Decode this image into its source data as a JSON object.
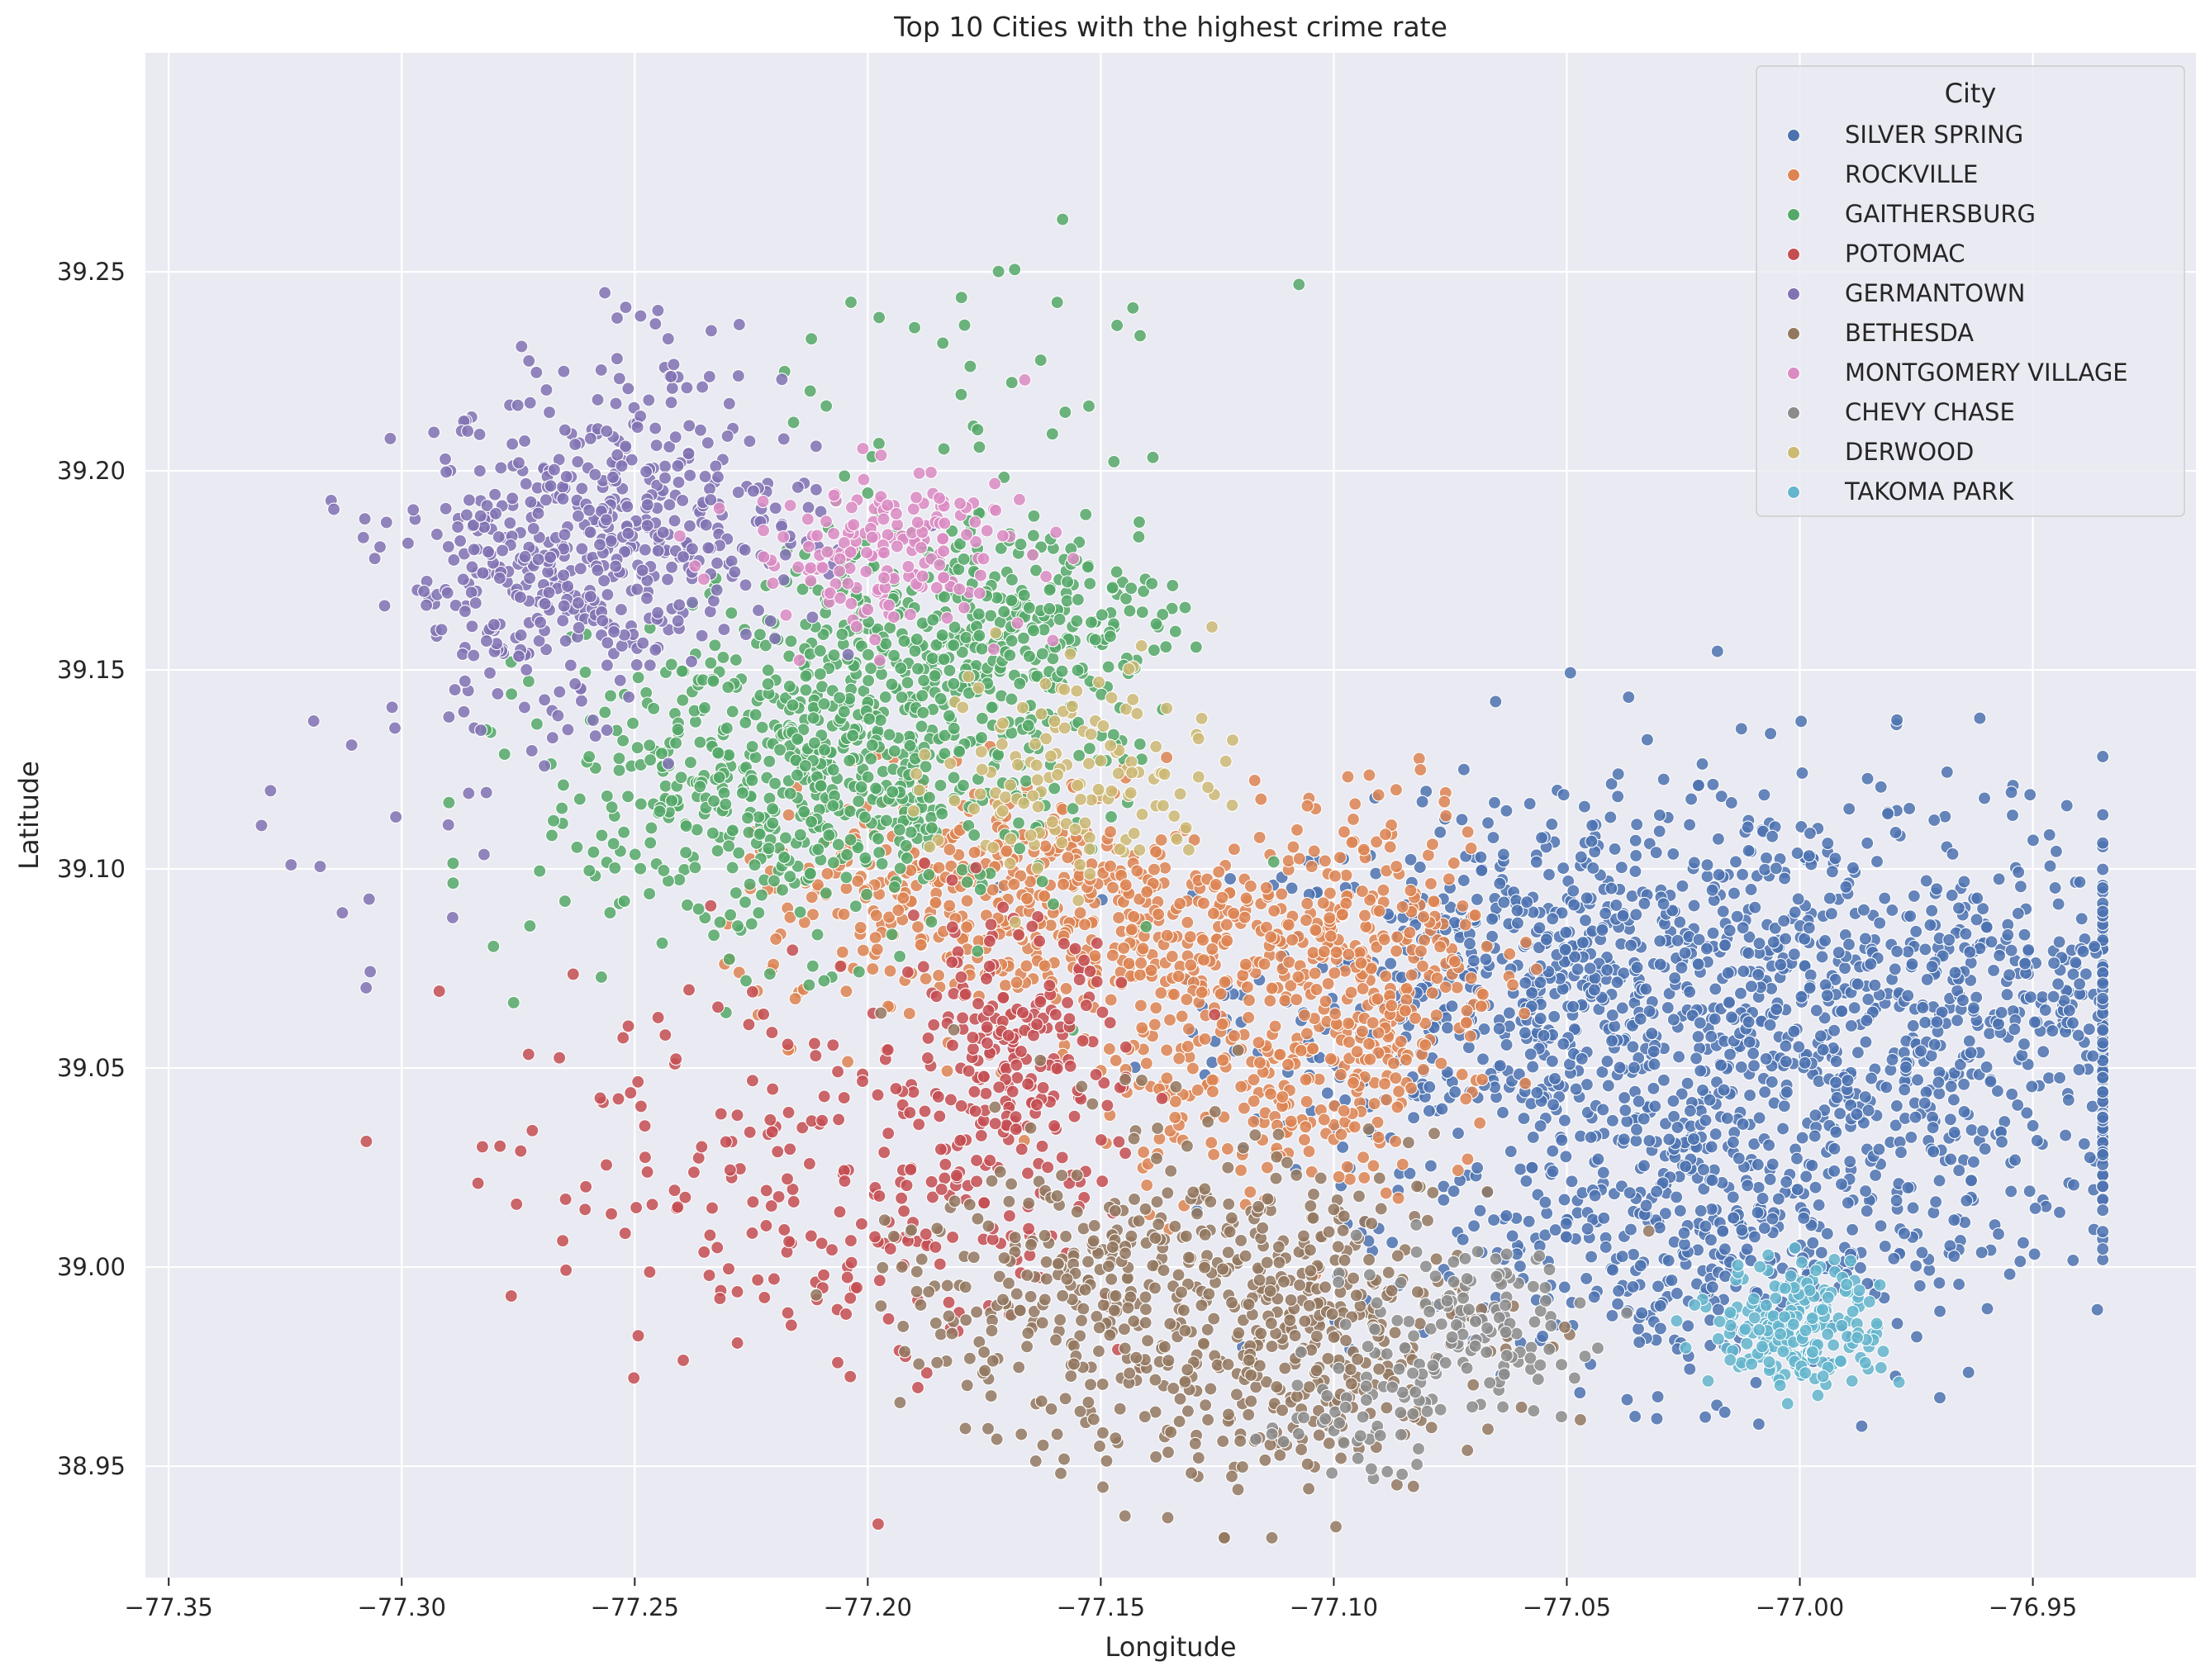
{
  "chart_data": {
    "type": "scatter",
    "title": "Top 10 Cities with the highest crime rate",
    "xlabel": "Longitude",
    "ylabel": "Latitude",
    "xlim": [
      -77.355,
      -76.915
    ],
    "ylim": [
      38.922,
      39.305
    ],
    "xticks": [
      -77.35,
      -77.3,
      -77.25,
      -77.2,
      -77.15,
      -77.1,
      -77.05,
      -77.0,
      -76.95
    ],
    "xtick_labels": [
      "−77.35",
      "−77.30",
      "−77.25",
      "−77.20",
      "−77.15",
      "−77.10",
      "−77.05",
      "−77.00",
      "−76.95"
    ],
    "yticks": [
      38.95,
      39.0,
      39.05,
      39.1,
      39.15,
      39.2,
      39.25
    ],
    "ytick_labels": [
      "38.95",
      "39.00",
      "39.05",
      "39.10",
      "39.15",
      "39.20",
      "39.25"
    ],
    "grid": true,
    "background": "#eaeaf2",
    "legend_title": "City",
    "legend_position": "top-right",
    "series": [
      {
        "name": "SILVER SPRING",
        "color": "#4c72b0",
        "clusters": [
          {
            "center": [
              -77.05,
              39.07
            ],
            "spread": [
              0.035,
              0.022
            ],
            "count": 700
          },
          {
            "center": [
              -76.98,
              39.055
            ],
            "spread": [
              0.04,
              0.025
            ],
            "count": 520
          },
          {
            "center": [
              -77.02,
              39.01
            ],
            "spread": [
              0.03,
              0.02
            ],
            "count": 480
          },
          {
            "center": [
              -76.955,
              39.07
            ],
            "spread": [
              0.02,
              0.015
            ],
            "count": 150
          },
          {
            "center": [
              -77.0,
              39.11
            ],
            "spread": [
              0.035,
              0.018
            ],
            "count": 90
          }
        ]
      },
      {
        "name": "ROCKVILLE",
        "color": "#dd8452",
        "clusters": [
          {
            "center": [
              -77.145,
              39.085
            ],
            "spread": [
              0.025,
              0.012
            ],
            "count": 350
          },
          {
            "center": [
              -77.09,
              39.08
            ],
            "spread": [
              0.013,
              0.02
            ],
            "count": 250
          },
          {
            "center": [
              -77.115,
              39.045
            ],
            "spread": [
              0.018,
              0.015
            ],
            "count": 220
          },
          {
            "center": [
              -77.19,
              39.09
            ],
            "spread": [
              0.02,
              0.015
            ],
            "count": 180
          },
          {
            "center": [
              -77.165,
              39.11
            ],
            "spread": [
              0.015,
              0.008
            ],
            "count": 60
          }
        ]
      },
      {
        "name": "GAITHERSBURG",
        "color": "#55a868",
        "clusters": [
          {
            "center": [
              -77.22,
              39.12
            ],
            "spread": [
              0.025,
              0.02
            ],
            "count": 500
          },
          {
            "center": [
              -77.19,
              39.145
            ],
            "spread": [
              0.02,
              0.02
            ],
            "count": 350
          },
          {
            "center": [
              -77.165,
              39.16
            ],
            "spread": [
              0.015,
              0.015
            ],
            "count": 200
          },
          {
            "center": [
              -77.18,
              39.22
            ],
            "spread": [
              0.03,
              0.02
            ],
            "count": 40
          }
        ]
      },
      {
        "name": "POTOMAC",
        "color": "#c44e52",
        "clusters": [
          {
            "center": [
              -77.17,
              39.05
            ],
            "spread": [
              0.012,
              0.018
            ],
            "count": 220
          },
          {
            "center": [
              -77.2,
              39.02
            ],
            "spread": [
              0.03,
              0.025
            ],
            "count": 180
          },
          {
            "center": [
              -77.24,
              39.03
            ],
            "spread": [
              0.025,
              0.025
            ],
            "count": 50
          }
        ]
      },
      {
        "name": "GERMANTOWN",
        "color": "#8172b3",
        "clusters": [
          {
            "center": [
              -77.27,
              39.175
            ],
            "spread": [
              0.015,
              0.02
            ],
            "count": 350
          },
          {
            "center": [
              -77.24,
              39.185
            ],
            "spread": [
              0.015,
              0.015
            ],
            "count": 200
          },
          {
            "center": [
              -77.24,
              39.23
            ],
            "spread": [
              0.01,
              0.012
            ],
            "count": 25
          },
          {
            "center": [
              -77.31,
              39.11
            ],
            "spread": [
              0.015,
              0.02
            ],
            "count": 15
          }
        ]
      },
      {
        "name": "BETHESDA",
        "color": "#937860",
        "clusters": [
          {
            "center": [
              -77.115,
              38.985
            ],
            "spread": [
              0.025,
              0.02
            ],
            "count": 500
          },
          {
            "center": [
              -77.15,
              39.0
            ],
            "spread": [
              0.02,
              0.02
            ],
            "count": 150
          },
          {
            "center": [
              -77.175,
              38.99
            ],
            "spread": [
              0.015,
              0.015
            ],
            "count": 60
          }
        ]
      },
      {
        "name": "MONTGOMERY VILLAGE",
        "color": "#da8bc3",
        "clusters": [
          {
            "center": [
              -77.195,
              39.18
            ],
            "spread": [
              0.015,
              0.01
            ],
            "count": 180
          }
        ]
      },
      {
        "name": "CHEVY CHASE",
        "color": "#8c8c8c",
        "clusters": [
          {
            "center": [
              -77.07,
              38.985
            ],
            "spread": [
              0.012,
              0.01
            ],
            "count": 120
          },
          {
            "center": [
              -77.095,
              38.965
            ],
            "spread": [
              0.01,
              0.008
            ],
            "count": 60
          }
        ]
      },
      {
        "name": "DERWOOD",
        "color": "#ccb974",
        "clusters": [
          {
            "center": [
              -77.155,
              39.125
            ],
            "spread": [
              0.015,
              0.015
            ],
            "count": 140
          }
        ]
      },
      {
        "name": "TAKOMA PARK",
        "color": "#64b5cd",
        "clusters": [
          {
            "center": [
              -77.0,
              38.985
            ],
            "spread": [
              0.009,
              0.008
            ],
            "count": 220
          }
        ]
      }
    ]
  }
}
